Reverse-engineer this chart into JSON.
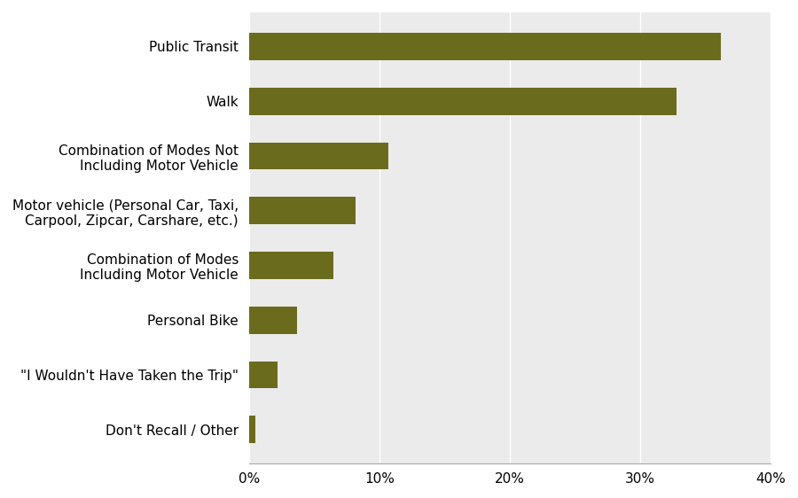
{
  "categories": [
    "Public Transit",
    "Walk",
    "Combination of Modes Not\nIncluding Motor Vehicle",
    "Motor vehicle (Personal Car, Taxi,\nCarpool, Zipcar, Carshare, etc.)",
    "Combination of Modes\nIncluding Motor Vehicle",
    "Personal Bike",
    "\"I Wouldn't Have Taken the Trip\"",
    "Don't Recall / Other"
  ],
  "values": [
    0.362,
    0.328,
    0.107,
    0.082,
    0.065,
    0.037,
    0.022,
    0.005
  ],
  "bar_color": "#6b6b1e",
  "plot_bg_color": "#ebebeb",
  "figure_bg_color": "#ffffff",
  "xlim": [
    0,
    0.4
  ],
  "xticks": [
    0.0,
    0.1,
    0.2,
    0.3,
    0.4
  ],
  "xticklabels": [
    "0%",
    "10%",
    "20%",
    "30%",
    "40%"
  ],
  "grid_color": "#ffffff",
  "bar_height": 0.5,
  "label_fontsize": 11,
  "tick_fontsize": 11
}
